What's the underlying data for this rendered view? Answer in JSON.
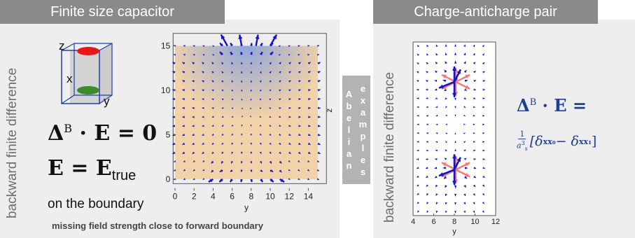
{
  "left_panel": {
    "title": "Finite size capacitor",
    "side_label": "backward finite difference",
    "cube_labels": {
      "z": "z",
      "x": "x",
      "y": "y"
    },
    "equation_1": {
      "lhs": "Δ",
      "sup": "B",
      "rest": " · E = 0"
    },
    "equation_2": {
      "lhs": "E = E",
      "sub": "true"
    },
    "boundary_note": "on the boundary",
    "footer_note": "missing  field strength close to forward boundary",
    "plot": {
      "xlabel": "y",
      "ylabel": "z",
      "xticks": [
        "0",
        "2",
        "4",
        "6",
        "8",
        "10",
        "12",
        "14"
      ],
      "yticks": [
        "0",
        "5",
        "10",
        "15"
      ]
    }
  },
  "divider": {
    "col1": [
      "A",
      "b",
      "e",
      "l",
      "i",
      "a",
      "n"
    ],
    "col2": [
      "e",
      "x",
      "a",
      "m",
      "p",
      "l",
      "e",
      "s"
    ]
  },
  "right_panel": {
    "title": "Charge-anticharge pair",
    "side_label": "backward finite difference",
    "equation_1": {
      "lhs": "Δ",
      "sup": "B",
      "rest": " · E ="
    },
    "equation_2": {
      "frac_num": "1",
      "frac_den": "a",
      "frac_den_sup": "3",
      "frac_den_sub": "s",
      "body": "[δ",
      "sub0": "xx₀",
      "mid": " − δ",
      "sub1": "xx₁",
      "end": "]"
    },
    "plot": {
      "xlabel": "y",
      "xticks": [
        "4",
        "6",
        "8",
        "10",
        "12"
      ]
    }
  },
  "colors": {
    "tab": "#8a8a8a",
    "panel": "#eeeeee",
    "arrow_blue": "#1414c8",
    "arrow_pink": "#f07878",
    "plate_red": "#e81818",
    "plate_green": "#3e8a2e",
    "fill_tan": "#f2d2a8",
    "equation_blue": "#1f3f93"
  }
}
